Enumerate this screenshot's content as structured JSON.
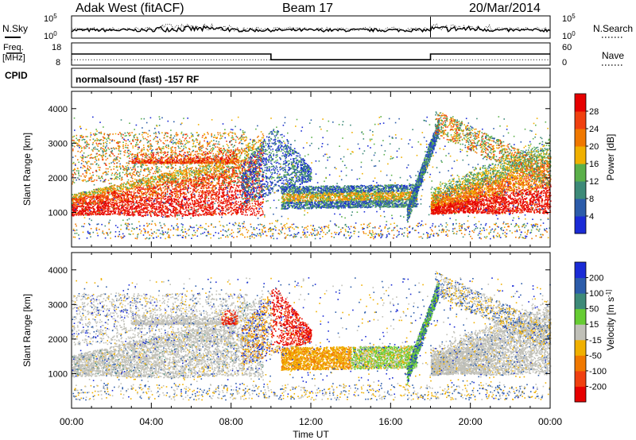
{
  "header": {
    "station": "Adak West (fitACF)",
    "beam": "Beam 17",
    "date": "20/Mar/2014"
  },
  "noise_panel": {
    "left_label": "N.Sky",
    "right_label": "N.Search",
    "left_ticks": [
      "10^5",
      "10^0"
    ],
    "right_ticks": [
      "10^5",
      "10^0"
    ]
  },
  "freq_panel": {
    "left_label_1": "Freq.",
    "left_label_2": "[MHz]",
    "right_label": "Nave",
    "left_ticks": [
      "18",
      "8"
    ],
    "right_ticks": [
      "60",
      "0"
    ],
    "freq_mhz": [
      {
        "from": "00:00",
        "to": "10:00",
        "value": 13
      },
      {
        "from": "10:00",
        "to": "18:00",
        "value": 10
      },
      {
        "from": "18:00",
        "to": "24:00",
        "value": 13
      }
    ],
    "nave": 12
  },
  "cpid": {
    "label": "CPID",
    "text": "normalsound (fast) -157 RF"
  },
  "chart_data": [
    {
      "type": "heatmap",
      "quantity": "Power",
      "ylabel": "Slant Range [km]",
      "ylim": [
        0,
        4500
      ],
      "yticks": [
        "1000",
        "2000",
        "3000",
        "4000"
      ],
      "xlim": [
        "00:00",
        "24:00"
      ],
      "colorbar_label": "Power [dB]",
      "colorbar_ticks": [
        "4",
        "8",
        "12",
        "16",
        "20",
        "24",
        "28"
      ],
      "colorbar_range": [
        0,
        32
      ],
      "colors": [
        "#1a2bd6",
        "#2c5caa",
        "#3d8a78",
        "#5bb04a",
        "#f0b000",
        "#f07800",
        "#f04010",
        "#e60000"
      ]
    },
    {
      "type": "heatmap",
      "quantity": "Velocity",
      "ylabel": "Slant Range [km]",
      "ylim": [
        0,
        4500
      ],
      "yticks": [
        "1000",
        "2000",
        "3000",
        "4000"
      ],
      "xlim": [
        "00:00",
        "24:00"
      ],
      "colorbar_label": "Velocity [m s^-1]",
      "colorbar_ticks": [
        "200",
        "100",
        "50",
        "15",
        "-15",
        "-50",
        "-100",
        "-200"
      ],
      "colors": [
        "#1a2bd6",
        "#2c5caa",
        "#3d8a78",
        "#66cc33",
        "#c0c0b8",
        "#f0b000",
        "#f07800",
        "#f04010",
        "#e60000"
      ]
    }
  ],
  "xaxis": {
    "ticks": [
      "00:00",
      "04:00",
      "08:00",
      "12:00",
      "16:00",
      "20:00",
      "00:00"
    ],
    "label": "Time UT"
  }
}
